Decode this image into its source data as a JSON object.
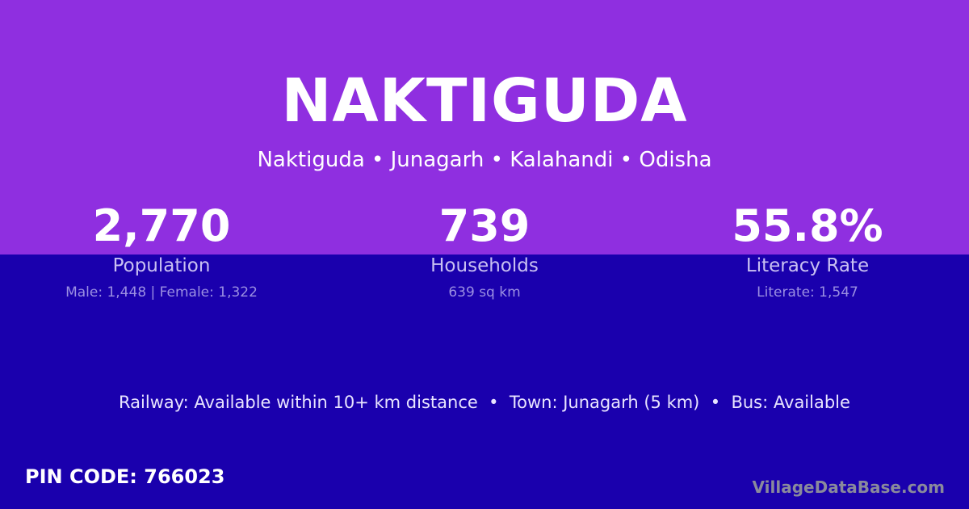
{
  "colors": {
    "top_bg": "#8f2fe0",
    "bottom_bg": "#1a00ad"
  },
  "title": "NAKTIGUDA",
  "subtitle": "Naktiguda • Junagarh • Kalahandi • Odisha",
  "stats": [
    {
      "value": "2,770",
      "label": "Population",
      "detail": "Male: 1,448 | Female: 1,322"
    },
    {
      "value": "739",
      "label": "Households",
      "detail": "639 sq km"
    },
    {
      "value": "55.8%",
      "label": "Literacy Rate",
      "detail": "Literate: 1,547"
    }
  ],
  "transport": "Railway: Available within 10+ km distance  •  Town: Junagarh (5 km)  •  Bus: Available",
  "pin_code": "PIN CODE: 766023",
  "watermark": "VillageDataBase.com"
}
